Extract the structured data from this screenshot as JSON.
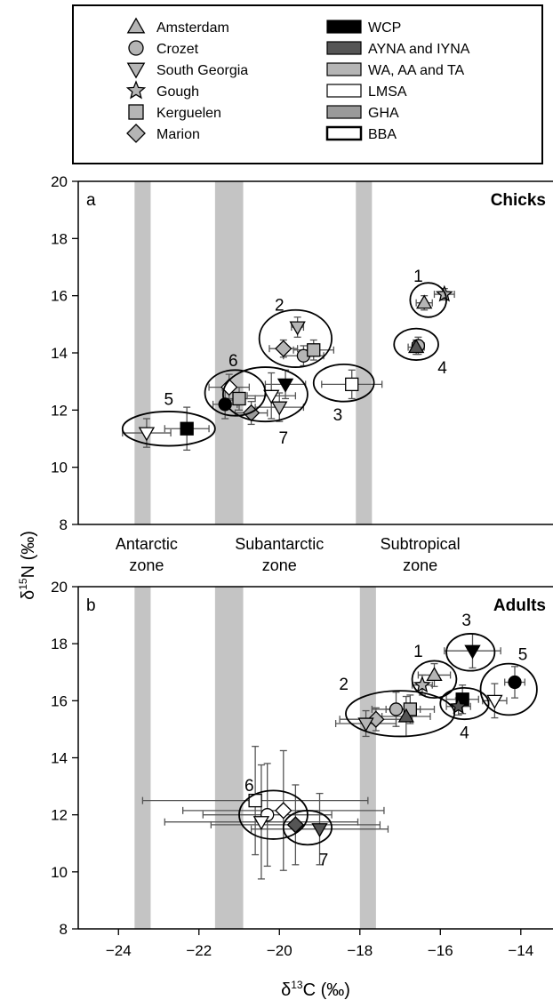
{
  "legend": {
    "sites": [
      {
        "label": "Amsterdam",
        "marker": "triangle-up-icon"
      },
      {
        "label": "Crozet",
        "marker": "circle-icon"
      },
      {
        "label": "South Georgia",
        "marker": "triangle-down-icon"
      },
      {
        "label": "Gough",
        "marker": "star-icon"
      },
      {
        "label": "Kerguelen",
        "marker": "square-icon"
      },
      {
        "label": "Marion",
        "marker": "diamond-icon"
      }
    ],
    "species": [
      {
        "label": "WCP",
        "fill": "#000000"
      },
      {
        "label": "AYNA and IYNA",
        "fill": "#555555"
      },
      {
        "label": "WA, AA and TA",
        "fill": "#b5b5b5"
      },
      {
        "label": "LMSA",
        "fill": "#ffffff"
      },
      {
        "label": "GHA",
        "fill": "#9a9a9a"
      },
      {
        "label": "BBA",
        "fill": "#ffffff"
      }
    ]
  },
  "axes": {
    "xlabel": "δ13C (‰)",
    "ylabel": "δ15N (‰)",
    "x_ticks": [
      "−24",
      "−22",
      "−20",
      "−18",
      "−16",
      "−14"
    ]
  },
  "zones": [
    {
      "label_line1": "Antarctic",
      "label_line2": "zone",
      "x": -23.3
    },
    {
      "label_line1": "Subantarctic",
      "label_line2": "zone",
      "x": -20.0
    },
    {
      "label_line1": "Subtropical",
      "label_line2": "zone",
      "x": -16.5
    }
  ],
  "colors": {
    "front_band": "#c4c4c4",
    "frame": "#000000",
    "ellipse": "#000000"
  },
  "chart_data": [
    {
      "type": "scatter",
      "panel_letter": "a",
      "panel_title": "Chicks",
      "xlim": [
        -25,
        -13.2
      ],
      "ylim": [
        8,
        20
      ],
      "y_ticks": [
        8,
        10,
        12,
        14,
        16,
        18,
        20
      ],
      "front_bands": [
        [
          -23.6,
          -23.2
        ],
        [
          -21.6,
          -20.9
        ],
        [
          -18.1,
          -17.7
        ]
      ],
      "groups": [
        {
          "label": "1",
          "cx": -16.3,
          "cy": 15.85,
          "rx": 0.45,
          "ry": 0.6,
          "label_x": -16.55,
          "label_y": 16.7
        },
        {
          "label": "2",
          "cx": -19.6,
          "cy": 14.5,
          "rx": 0.9,
          "ry": 1.0,
          "label_x": -20.0,
          "label_y": 15.7
        },
        {
          "label": "3",
          "cx": -18.4,
          "cy": 12.95,
          "rx": 0.75,
          "ry": 0.65,
          "label_x": -18.55,
          "label_y": 11.85
        },
        {
          "label": "4",
          "cx": -16.6,
          "cy": 14.3,
          "rx": 0.55,
          "ry": 0.55,
          "label_x": -15.95,
          "label_y": 13.5
        },
        {
          "label": "5",
          "cx": -22.75,
          "cy": 11.35,
          "rx": 1.15,
          "ry": 0.6,
          "label_x": -22.75,
          "label_y": 12.4
        },
        {
          "label": "6",
          "cx": -21.1,
          "cy": 12.6,
          "rx": 0.75,
          "ry": 0.8,
          "label_x": -21.15,
          "label_y": 13.75
        },
        {
          "label": "7",
          "cx": -20.35,
          "cy": 12.55,
          "rx": 1.05,
          "ry": 0.95,
          "label_x": -19.9,
          "label_y": 11.05
        }
      ],
      "points": [
        {
          "marker": "star",
          "fill": "#b5b5b5",
          "x": -15.9,
          "y": 16.05,
          "xerr": 0.25,
          "yerr": 0.2
        },
        {
          "marker": "triangle-up",
          "fill": "#b5b5b5",
          "x": -16.4,
          "y": 15.75,
          "xerr": 0.2,
          "yerr": 0.25
        },
        {
          "marker": "triangle-down",
          "fill": "#b5b5b5",
          "x": -19.55,
          "y": 14.9,
          "xerr": 0.15,
          "yerr": 0.35
        },
        {
          "marker": "diamond",
          "fill": "#b5b5b5",
          "x": -19.9,
          "y": 14.15,
          "xerr": 0.35,
          "yerr": 0.3
        },
        {
          "marker": "circle",
          "fill": "#b5b5b5",
          "x": -19.4,
          "y": 13.9,
          "xerr": 0.5,
          "yerr": 0.35
        },
        {
          "marker": "square",
          "fill": "#b5b5b5",
          "x": -19.15,
          "y": 14.1,
          "xerr": 0.5,
          "yerr": 0.35
        },
        {
          "marker": "square",
          "fill": "#ffffff",
          "x": -18.2,
          "y": 12.9,
          "xerr": 0.75,
          "yerr": 0.5
        },
        {
          "marker": "triangle-down",
          "fill": "#000000",
          "x": -19.85,
          "y": 12.9,
          "xerr": 0.5,
          "yerr": 0.5
        },
        {
          "marker": "triangle-down",
          "fill": "#ffffff",
          "x": -20.2,
          "y": 12.5,
          "xerr": 0.6,
          "yerr": 0.8
        },
        {
          "marker": "triangle-down",
          "fill": "#b5b5b5",
          "x": -20.0,
          "y": 12.1,
          "xerr": 0.6,
          "yerr": 0.5
        },
        {
          "marker": "diamond",
          "fill": "#9a9a9a",
          "x": -20.7,
          "y": 11.9,
          "xerr": 0.4,
          "yerr": 0.4
        },
        {
          "marker": "diamond",
          "fill": "#ffffff",
          "x": -21.25,
          "y": 12.8,
          "xerr": 0.5,
          "yerr": 0.45
        },
        {
          "marker": "square",
          "fill": "#b5b5b5",
          "x": -21.0,
          "y": 12.4,
          "xerr": 0.4,
          "yerr": 0.4
        },
        {
          "marker": "circle",
          "fill": "#000000",
          "x": -21.35,
          "y": 12.2,
          "xerr": 0.3,
          "yerr": 0.5
        },
        {
          "marker": "circle",
          "fill": "#b5b5b5",
          "x": -16.55,
          "y": 14.25,
          "xerr": 0.15,
          "yerr": 0.3
        },
        {
          "marker": "triangle-up",
          "fill": "#555555",
          "x": -16.6,
          "y": 14.2,
          "xerr": 0.2,
          "yerr": 0.25
        },
        {
          "marker": "triangle-down",
          "fill": "#ffffff",
          "x": -23.3,
          "y": 11.2,
          "xerr": 0.6,
          "yerr": 0.5
        },
        {
          "marker": "square",
          "fill": "#000000",
          "x": -22.3,
          "y": 11.35,
          "xerr": 0.55,
          "yerr": 0.75
        }
      ]
    },
    {
      "type": "scatter",
      "panel_letter": "b",
      "panel_title": "Adults",
      "xlim": [
        -25,
        -13.2
      ],
      "ylim": [
        8,
        20
      ],
      "y_ticks": [
        8,
        10,
        12,
        14,
        16,
        18,
        20
      ],
      "front_bands": [
        [
          -23.6,
          -23.2
        ],
        [
          -21.6,
          -20.9
        ],
        [
          -18.0,
          -17.6
        ]
      ],
      "groups": [
        {
          "label": "1",
          "cx": -16.15,
          "cy": 16.75,
          "rx": 0.55,
          "ry": 0.65,
          "label_x": -16.55,
          "label_y": 17.75
        },
        {
          "label": "2",
          "cx": -17.0,
          "cy": 15.55,
          "rx": 1.35,
          "ry": 0.8,
          "label_x": -18.4,
          "label_y": 16.6
        },
        {
          "label": "3",
          "cx": -15.25,
          "cy": 17.7,
          "rx": 0.6,
          "ry": 0.65,
          "label_x": -15.35,
          "label_y": 18.85
        },
        {
          "label": "4",
          "cx": -15.4,
          "cy": 15.9,
          "rx": 0.6,
          "ry": 0.55,
          "label_x": -15.4,
          "label_y": 14.9
        },
        {
          "label": "5",
          "cx": -14.3,
          "cy": 16.4,
          "rx": 0.7,
          "ry": 0.9,
          "label_x": -13.95,
          "label_y": 17.65
        },
        {
          "label": "6",
          "cx": -20.15,
          "cy": 12.0,
          "rx": 0.85,
          "ry": 0.85,
          "label_x": -20.75,
          "label_y": 13.05
        },
        {
          "label": "7",
          "cx": -19.3,
          "cy": 11.55,
          "rx": 0.6,
          "ry": 0.6,
          "label_x": -18.9,
          "label_y": 10.45
        }
      ],
      "points": [
        {
          "marker": "triangle-down",
          "fill": "#000000",
          "x": -15.2,
          "y": 17.75,
          "xerr": 0.7,
          "yerr": 0.6
        },
        {
          "marker": "triangle-up",
          "fill": "#b5b5b5",
          "x": -16.15,
          "y": 16.9,
          "xerr": 0.4,
          "yerr": 0.4
        },
        {
          "marker": "star",
          "fill": "#b5b5b5",
          "x": -16.45,
          "y": 16.55,
          "xerr": 0.25,
          "yerr": 0.35
        },
        {
          "marker": "circle",
          "fill": "#000000",
          "x": -14.15,
          "y": 16.65,
          "xerr": 0.25,
          "yerr": 0.55
        },
        {
          "marker": "triangle-down",
          "fill": "#ffffff",
          "x": -14.65,
          "y": 16.0,
          "xerr": 0.3,
          "yerr": 0.6
        },
        {
          "marker": "square",
          "fill": "#000000",
          "x": -15.45,
          "y": 16.05,
          "xerr": 0.4,
          "yerr": 0.5
        },
        {
          "marker": "star",
          "fill": "#555555",
          "x": -15.55,
          "y": 15.8,
          "xerr": 0.3,
          "yerr": 0.3
        },
        {
          "marker": "circle",
          "fill": "#b5b5b5",
          "x": -17.1,
          "y": 15.7,
          "xerr": 0.6,
          "yerr": 0.6
        },
        {
          "marker": "square",
          "fill": "#b5b5b5",
          "x": -16.75,
          "y": 15.7,
          "xerr": 0.6,
          "yerr": 0.5
        },
        {
          "marker": "triangle-up",
          "fill": "#555555",
          "x": -16.85,
          "y": 15.45,
          "xerr": 0.6,
          "yerr": 0.7
        },
        {
          "marker": "diamond",
          "fill": "#b5b5b5",
          "x": -17.6,
          "y": 15.35,
          "xerr": 0.9,
          "yerr": 0.4
        },
        {
          "marker": "triangle-down",
          "fill": "#b5b5b5",
          "x": -17.85,
          "y": 15.2,
          "xerr": 0.75,
          "yerr": 0.45
        },
        {
          "marker": "square",
          "fill": "#ffffff",
          "x": -20.6,
          "y": 12.5,
          "xerr": 2.8,
          "yerr": 1.9
        },
        {
          "marker": "diamond",
          "fill": "#ffffff",
          "x": -19.9,
          "y": 12.15,
          "xerr": 2.5,
          "yerr": 2.1
        },
        {
          "marker": "circle",
          "fill": "#ffffff",
          "x": -20.3,
          "y": 12.0,
          "xerr": 1.6,
          "yerr": 1.8
        },
        {
          "marker": "triangle-down",
          "fill": "#ffffff",
          "x": -20.45,
          "y": 11.75,
          "xerr": 2.4,
          "yerr": 2.0
        },
        {
          "marker": "diamond",
          "fill": "#555555",
          "x": -19.6,
          "y": 11.65,
          "xerr": 2.1,
          "yerr": 1.4
        },
        {
          "marker": "triangle-down",
          "fill": "#555555",
          "x": -19.0,
          "y": 11.5,
          "xerr": 1.7,
          "yerr": 1.25
        }
      ]
    }
  ]
}
